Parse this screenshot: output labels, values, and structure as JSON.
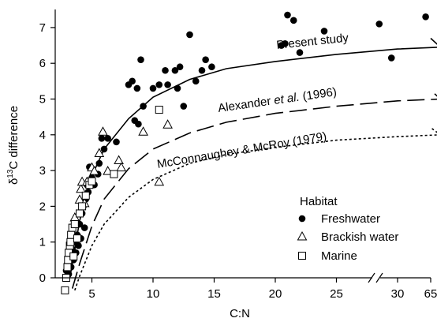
{
  "chart_data": {
    "type": "scatter",
    "xlabel": "C:N",
    "ylabel_prefix": "δ",
    "ylabel_sup": "13",
    "ylabel_suffix": "C difference",
    "xlim": [
      2,
      65
    ],
    "ylim": [
      0,
      7.6
    ],
    "x_break": {
      "from": 30,
      "to": 65,
      "note": "axis break between 30 and 65"
    },
    "x_ticks": [
      5,
      10,
      15,
      20,
      25,
      30,
      65
    ],
    "y_ticks": [
      0,
      1,
      2,
      3,
      4,
      5,
      6,
      7
    ],
    "legend": {
      "title": "Habitat",
      "placement": "bottom-right",
      "entries": [
        {
          "label": "Freshwater",
          "marker": "filled-circle"
        },
        {
          "label": "Brackish water",
          "marker": "open-triangle"
        },
        {
          "label": "Marine",
          "marker": "open-square"
        }
      ]
    },
    "curve_labels": {
      "present_study": "Present study",
      "alexander_pre": "Alexander ",
      "alexander_italic": "et al.",
      "alexander_post": " (1996)",
      "mcconnaughey": "McConnaughey & McRoy (1979)"
    },
    "curves": [
      {
        "name": "Present study",
        "style": "solid",
        "points": [
          [
            3.2,
            0.0
          ],
          [
            4,
            1.6
          ],
          [
            5,
            2.85
          ],
          [
            6,
            3.6
          ],
          [
            8,
            4.45
          ],
          [
            10,
            5.05
          ],
          [
            13,
            5.55
          ],
          [
            16,
            5.85
          ],
          [
            20,
            6.05
          ],
          [
            25,
            6.25
          ],
          [
            30,
            6.4
          ],
          [
            33.5,
            6.45
          ],
          [
            65,
            6.7
          ]
        ]
      },
      {
        "name": "Alexander et al. (1996)",
        "style": "dashed",
        "points": [
          [
            3.4,
            -0.3
          ],
          [
            4,
            0.4
          ],
          [
            5,
            1.45
          ],
          [
            6,
            2.2
          ],
          [
            8,
            3.05
          ],
          [
            10,
            3.6
          ],
          [
            13,
            4.05
          ],
          [
            16,
            4.35
          ],
          [
            20,
            4.6
          ],
          [
            25,
            4.8
          ],
          [
            30,
            4.95
          ],
          [
            33.5,
            5.0
          ],
          [
            65,
            5.25
          ]
        ]
      },
      {
        "name": "McConnaughey & McRoy (1979)",
        "style": "dotted",
        "points": [
          [
            3.6,
            -0.35
          ],
          [
            4,
            0.05
          ],
          [
            5,
            0.9
          ],
          [
            6,
            1.5
          ],
          [
            8,
            2.25
          ],
          [
            10,
            2.75
          ],
          [
            13,
            3.2
          ],
          [
            16,
            3.45
          ],
          [
            20,
            3.65
          ],
          [
            25,
            3.85
          ],
          [
            30,
            3.95
          ],
          [
            33.5,
            4.0
          ],
          [
            65,
            4.2
          ]
        ]
      }
    ],
    "series": [
      {
        "name": "Freshwater",
        "marker": "filled-circle",
        "points": [
          [
            2.9,
            0.2
          ],
          [
            3.0,
            0.4
          ],
          [
            3.1,
            0.1
          ],
          [
            3.2,
            0.6
          ],
          [
            3.3,
            0.3
          ],
          [
            3.4,
            0.8
          ],
          [
            3.5,
            0.5
          ],
          [
            3.6,
            1.0
          ],
          [
            3.7,
            0.7
          ],
          [
            3.8,
            1.2
          ],
          [
            3.9,
            0.9
          ],
          [
            4.0,
            1.5
          ],
          [
            4.1,
            1.1
          ],
          [
            4.2,
            1.8
          ],
          [
            4.3,
            2.0
          ],
          [
            4.4,
            1.4
          ],
          [
            4.5,
            2.2
          ],
          [
            4.6,
            2.6
          ],
          [
            4.7,
            2.4
          ],
          [
            4.8,
            3.1
          ],
          [
            5.0,
            2.8
          ],
          [
            5.2,
            2.6
          ],
          [
            5.5,
            2.9
          ],
          [
            5.6,
            3.2
          ],
          [
            5.8,
            3.9
          ],
          [
            6.0,
            3.6
          ],
          [
            6.3,
            3.9
          ],
          [
            7.0,
            3.8
          ],
          [
            8.0,
            5.4
          ],
          [
            8.3,
            5.5
          ],
          [
            8.5,
            4.4
          ],
          [
            8.7,
            5.3
          ],
          [
            8.8,
            4.3
          ],
          [
            9.0,
            6.1
          ],
          [
            9.2,
            4.8
          ],
          [
            10.0,
            5.3
          ],
          [
            10.5,
            5.4
          ],
          [
            11.0,
            5.8
          ],
          [
            11.2,
            5.4
          ],
          [
            11.8,
            5.8
          ],
          [
            12.0,
            5.3
          ],
          [
            12.2,
            5.9
          ],
          [
            12.5,
            4.8
          ],
          [
            13.0,
            6.8
          ],
          [
            13.5,
            5.5
          ],
          [
            14.0,
            5.8
          ],
          [
            14.3,
            6.1
          ],
          [
            14.8,
            5.9
          ],
          [
            20.5,
            6.5
          ],
          [
            20.8,
            6.55
          ],
          [
            21.0,
            7.35
          ],
          [
            21.5,
            7.2
          ],
          [
            22.0,
            6.3
          ],
          [
            24.0,
            6.9
          ],
          [
            28.5,
            7.1
          ],
          [
            29.5,
            6.15
          ],
          [
            62.0,
            7.3
          ]
        ]
      },
      {
        "name": "Brackish water",
        "marker": "open-triangle",
        "points": [
          [
            3.6,
            1.7
          ],
          [
            4.0,
            2.2
          ],
          [
            4.1,
            2.5
          ],
          [
            4.2,
            2.7
          ],
          [
            4.4,
            2.1
          ],
          [
            4.6,
            2.7
          ],
          [
            5.0,
            3.1
          ],
          [
            5.2,
            3.0
          ],
          [
            5.6,
            3.5
          ],
          [
            5.9,
            4.1
          ],
          [
            6.3,
            3.0
          ],
          [
            7.2,
            3.3
          ],
          [
            7.4,
            3.1
          ],
          [
            9.2,
            4.1
          ],
          [
            10.5,
            2.7
          ],
          [
            11.2,
            4.3
          ]
        ]
      },
      {
        "name": "Marine",
        "marker": "open-square",
        "points": [
          [
            2.8,
            -0.35
          ],
          [
            2.9,
            0.0
          ],
          [
            3.0,
            0.3
          ],
          [
            3.05,
            0.5
          ],
          [
            3.1,
            0.7
          ],
          [
            3.2,
            0.9
          ],
          [
            3.25,
            1.0
          ],
          [
            3.3,
            1.2
          ],
          [
            3.4,
            1.4
          ],
          [
            3.5,
            0.6
          ],
          [
            3.6,
            1.5
          ],
          [
            3.8,
            1.1
          ],
          [
            4.0,
            1.8
          ],
          [
            4.2,
            2.0
          ],
          [
            4.5,
            2.3
          ],
          [
            4.8,
            2.6
          ],
          [
            5.0,
            2.7
          ],
          [
            6.8,
            2.9
          ],
          [
            10.5,
            4.7
          ]
        ]
      }
    ]
  }
}
